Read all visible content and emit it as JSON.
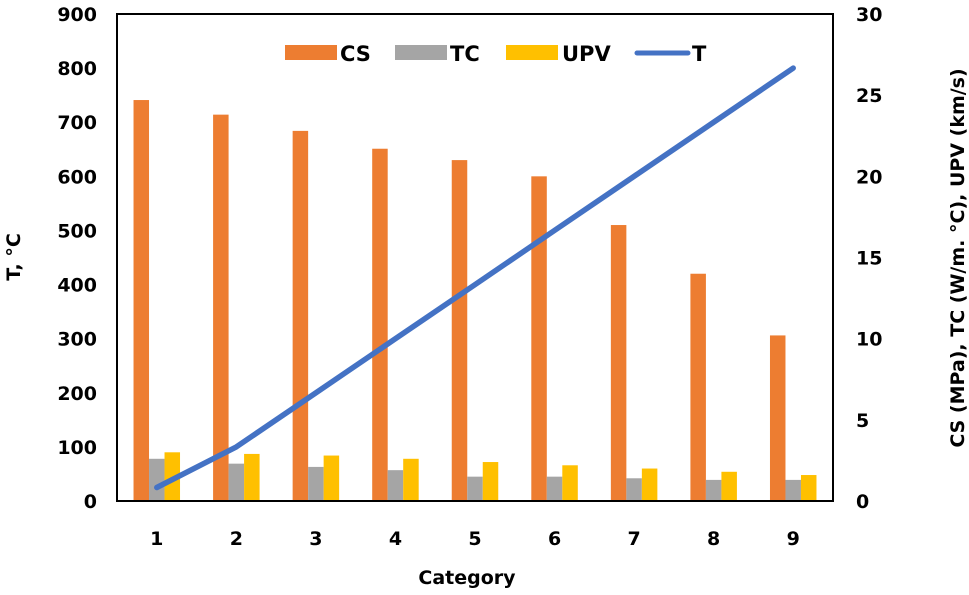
{
  "chart_data": {
    "type": "bar+line",
    "title": "",
    "xlabel": "Category",
    "ylabel_left": "T, °C",
    "ylabel_right": "CS (MPa), TC (W/m. °C), UPV (km/s)",
    "categories": [
      "1",
      "2",
      "3",
      "4",
      "5",
      "6",
      "7",
      "8",
      "9"
    ],
    "ylim_left": [
      0,
      900
    ],
    "yticks_left": [
      0,
      100,
      200,
      300,
      400,
      500,
      600,
      700,
      800,
      900
    ],
    "ylim_right": [
      0,
      30
    ],
    "yticks_right": [
      0,
      5,
      10,
      15,
      20,
      25,
      30
    ],
    "grid": false,
    "legend_position": "top-inside",
    "series": [
      {
        "name": "CS",
        "type": "bar",
        "axis": "right",
        "color": "#ED7D31",
        "values": [
          24.7,
          23.8,
          22.8,
          21.7,
          21.0,
          20.0,
          17.0,
          14.0,
          10.2
        ]
      },
      {
        "name": "TC",
        "type": "bar",
        "axis": "right",
        "color": "#A5A5A5",
        "values": [
          2.6,
          2.3,
          2.1,
          1.9,
          1.5,
          1.5,
          1.4,
          1.3,
          1.3
        ]
      },
      {
        "name": "UPV",
        "type": "bar",
        "axis": "right",
        "color": "#FFC000",
        "values": [
          3.0,
          2.9,
          2.8,
          2.6,
          2.4,
          2.2,
          2.0,
          1.8,
          1.6
        ]
      },
      {
        "name": "T",
        "type": "line",
        "axis": "left",
        "color": "#4472C4",
        "values": [
          25,
          100,
          200,
          300,
          400,
          500,
          600,
          700,
          800
        ]
      }
    ]
  }
}
